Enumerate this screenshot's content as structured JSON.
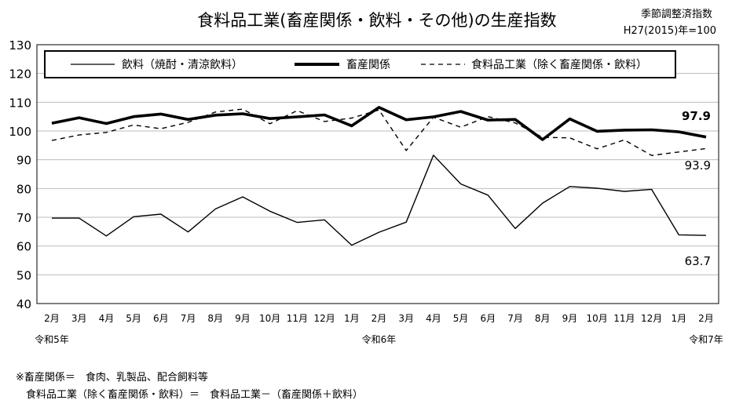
{
  "chart_data": {
    "type": "line",
    "title": "食料品工業(畜産関係・飲料・その他)の生産指数",
    "subtitle_lines": [
      "季節調整済指数",
      "H27(2015)年=100"
    ],
    "categories": [
      "2月",
      "3月",
      "4月",
      "5月",
      "6月",
      "7月",
      "8月",
      "9月",
      "10月",
      "11月",
      "12月",
      "1月",
      "2月",
      "3月",
      "4月",
      "5月",
      "6月",
      "7月",
      "8月",
      "9月",
      "10月",
      "11月",
      "12月",
      "1月",
      "2月"
    ],
    "year_labels": [
      {
        "index": 0,
        "label": "令和5年"
      },
      {
        "index": 12,
        "label": "令和6年"
      },
      {
        "index": 24,
        "label": "令和7年"
      }
    ],
    "ylim": [
      40,
      130
    ],
    "yticks": [
      40,
      50,
      60,
      70,
      80,
      90,
      100,
      110,
      120,
      130
    ],
    "grid": true,
    "legend_position": "top",
    "series": [
      {
        "name": "飲料（焼酎・清涼飲料）",
        "style": "thin",
        "values": [
          69.7,
          69.7,
          63.5,
          70.2,
          71.1,
          64.9,
          72.9,
          77.1,
          72.1,
          68.2,
          69.1,
          60.3,
          64.8,
          68.3,
          91.6,
          81.6,
          77.7,
          66.1,
          74.9,
          80.7,
          80.1,
          79.0,
          79.7,
          63.9,
          63.7
        ]
      },
      {
        "name": "畜産関係",
        "style": "thick",
        "values": [
          102.7,
          104.6,
          102.6,
          105.0,
          105.9,
          104.0,
          105.5,
          106.0,
          104.3,
          104.9,
          105.6,
          101.8,
          108.2,
          103.9,
          104.9,
          106.8,
          103.8,
          104.0,
          97.0,
          104.2,
          99.9,
          100.3,
          100.4,
          99.7,
          97.9
        ]
      },
      {
        "name": "食料品工業（除く畜産関係・飲料）",
        "style": "dashed",
        "values": [
          96.7,
          98.6,
          99.5,
          102.1,
          100.8,
          103.0,
          106.6,
          107.6,
          102.5,
          107.1,
          103.3,
          104.5,
          107.3,
          93.2,
          104.8,
          101.3,
          105.0,
          102.8,
          97.8,
          97.6,
          93.8,
          96.9,
          91.5,
          92.7,
          93.9
        ]
      }
    ],
    "end_labels": [
      "63.7",
      "97.9",
      "93.9"
    ]
  },
  "notes": [
    "※畜産関係＝　食肉、乳製品、配合飼料等",
    "　食料品工業（除く畜産関係・飲料）＝　食料品工業－（畜産関係＋飲料）"
  ]
}
